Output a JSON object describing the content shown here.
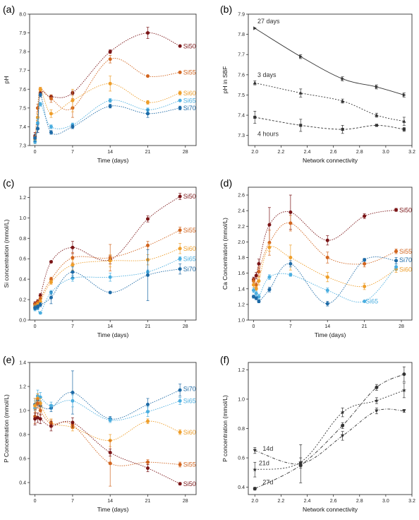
{
  "colors": {
    "Si50": "#7a1416",
    "Si55": "#d2651f",
    "Si60": "#ee9e2a",
    "Si65": "#4aaee0",
    "Si70": "#1d6aa6",
    "bw": "#333333"
  },
  "chart_data": [
    {
      "panel": "(a)",
      "type": "line",
      "xlabel": "Time (days)",
      "ylabel": "pH",
      "xlim": [
        -1,
        30
      ],
      "ylim": [
        7.3,
        8.0
      ],
      "xticks": [
        0,
        7,
        14,
        21,
        28
      ],
      "yticks": [
        7.3,
        7.4,
        7.5,
        7.6,
        7.7,
        7.8,
        7.9,
        8.0
      ],
      "xtick_labels": [
        "0",
        "7",
        "14",
        "21",
        "28"
      ],
      "ytick_labels": [
        "7.3",
        "7.4",
        "7.5",
        "7.6",
        "7.7",
        "7.8",
        "7.9",
        "8.0"
      ],
      "x": [
        0,
        0.5,
        1,
        3,
        7,
        14,
        21,
        27
      ],
      "series": [
        {
          "name": "Si50",
          "color": "Si50",
          "values": [
            7.35,
            7.39,
            7.58,
            7.56,
            7.58,
            7.8,
            7.9,
            7.83
          ],
          "err": [
            0.02,
            0.02,
            0.02,
            0.01,
            0.01,
            0.01,
            0.03,
            0.0
          ]
        },
        {
          "name": "Si55",
          "color": "Si55",
          "values": [
            7.34,
            7.5,
            7.6,
            7.55,
            7.5,
            7.76,
            7.67,
            7.69
          ],
          "err": [
            0.02,
            0.02,
            0.01,
            0.02,
            0.05,
            0.02,
            0.0,
            0.0
          ]
        },
        {
          "name": "Si60",
          "color": "Si60",
          "values": [
            7.33,
            7.45,
            7.6,
            7.47,
            7.54,
            7.63,
            7.53,
            7.58
          ],
          "err": [
            0.02,
            0.02,
            0.01,
            0.02,
            0.06,
            0.04,
            0.01,
            0.01
          ]
        },
        {
          "name": "Si65",
          "color": "Si65",
          "values": [
            7.32,
            7.42,
            7.52,
            7.4,
            7.41,
            7.54,
            7.49,
            7.54
          ],
          "err": [
            0.01,
            0.02,
            0.01,
            0.01,
            0.01,
            0.01,
            0.01,
            0.0
          ]
        },
        {
          "name": "Si70",
          "color": "Si70",
          "values": [
            7.34,
            7.39,
            7.57,
            7.37,
            7.4,
            7.51,
            7.47,
            7.5
          ],
          "err": [
            0.02,
            0.02,
            0.01,
            0.01,
            0.01,
            0.01,
            0.02,
            0.01
          ]
        }
      ],
      "labels": [
        {
          "text": "Si50",
          "color": "Si50",
          "x": 27.6,
          "y": 7.83
        },
        {
          "text": "Si55",
          "color": "Si55",
          "x": 27.6,
          "y": 7.69
        },
        {
          "text": "Si60",
          "color": "Si60",
          "x": 27.6,
          "y": 7.58
        },
        {
          "text": "Si65",
          "color": "Si65",
          "x": 27.6,
          "y": 7.54
        },
        {
          "text": "Si70",
          "color": "Si70",
          "x": 27.6,
          "y": 7.5
        }
      ]
    },
    {
      "panel": "(b)",
      "type": "line",
      "xlabel": "Network connectivity",
      "ylabel": "pH in SBF",
      "xlim": [
        1.95,
        3.2
      ],
      "ylim": [
        7.25,
        7.9
      ],
      "xticks": [
        2.0,
        2.2,
        2.4,
        2.6,
        2.8,
        3.0,
        3.2
      ],
      "yticks": [
        7.3,
        7.4,
        7.5,
        7.6,
        7.7,
        7.8,
        7.9
      ],
      "xtick_labels": [
        "2.0",
        "2.2",
        "2.4",
        "2.6",
        "2.8",
        "3.0",
        "3.2"
      ],
      "ytick_labels": [
        "7.3",
        "7.4",
        "7.5",
        "7.6",
        "7.7",
        "7.8",
        "7.9"
      ],
      "x": [
        2.0,
        2.35,
        2.67,
        2.93,
        3.14
      ],
      "series": [
        {
          "name": "27 days",
          "color": "bw",
          "marker": "tri-right",
          "dash": "",
          "values": [
            7.83,
            7.69,
            7.58,
            7.54,
            7.5
          ],
          "err": [
            0.0,
            0.01,
            0.01,
            0.01,
            0.01
          ]
        },
        {
          "name": "3 days",
          "color": "bw",
          "marker": "tri-up",
          "dash": "2 2",
          "values": [
            7.56,
            7.51,
            7.47,
            7.4,
            7.37
          ],
          "err": [
            0.01,
            0.02,
            0.01,
            0.01,
            0.02
          ]
        },
        {
          "name": "4 hours",
          "color": "bw",
          "marker": "square",
          "dash": "3 2",
          "values": [
            7.39,
            7.35,
            7.33,
            7.35,
            7.33
          ],
          "err": [
            0.03,
            0.03,
            0.02,
            0.0,
            0.01
          ]
        }
      ],
      "labels": [
        {
          "text": "27 days",
          "color": "bw",
          "x": 2.02,
          "y": 7.866
        },
        {
          "text": "3 days",
          "color": "bw",
          "x": 2.02,
          "y": 7.6
        },
        {
          "text": "4 hours",
          "color": "bw",
          "x": 2.02,
          "y": 7.308
        }
      ]
    },
    {
      "panel": "(c)",
      "type": "line",
      "xlabel": "Time (days)",
      "ylabel": "Si concentration (mmol/L)",
      "xlim": [
        -1,
        30
      ],
      "ylim": [
        0.0,
        1.3
      ],
      "xticks": [
        0,
        7,
        14,
        21,
        28
      ],
      "yticks": [
        0.0,
        0.2,
        0.4,
        0.6,
        0.8,
        1.0,
        1.2
      ],
      "xtick_labels": [
        "0",
        "7",
        "14",
        "21",
        "28"
      ],
      "ytick_labels": [
        "0.0",
        "0.2",
        "0.4",
        "0.6",
        "0.8",
        "1.0",
        "1.2"
      ],
      "x": [
        0,
        0.5,
        1,
        3,
        7,
        14,
        21,
        27
      ],
      "series": [
        {
          "name": "Si50",
          "color": "Si50",
          "values": [
            0.16,
            0.18,
            0.24,
            0.57,
            0.71,
            0.59,
            0.99,
            1.21
          ],
          "err": [
            0.02,
            0.02,
            0.02,
            0.01,
            0.06,
            0.04,
            0.03,
            0.03
          ]
        },
        {
          "name": "Si55",
          "color": "Si55",
          "values": [
            0.15,
            0.17,
            0.21,
            0.4,
            0.61,
            0.61,
            0.73,
            0.88
          ],
          "err": [
            0.02,
            0.02,
            0.02,
            0.02,
            0.05,
            0.13,
            0.04,
            0.03
          ]
        },
        {
          "name": "Si60",
          "color": "Si60",
          "values": [
            0.13,
            0.15,
            0.18,
            0.37,
            0.54,
            0.58,
            0.59,
            0.7
          ],
          "err": [
            0.02,
            0.02,
            0.02,
            0.02,
            0.05,
            0.06,
            0.05,
            0.05
          ]
        },
        {
          "name": "Si65",
          "color": "Si65",
          "values": [
            0.11,
            0.12,
            0.07,
            0.27,
            0.41,
            0.42,
            0.47,
            0.6
          ],
          "err": [
            0.02,
            0.02,
            0.01,
            0.02,
            0.03,
            0.04,
            0.02,
            0.02
          ]
        },
        {
          "name": "Si70",
          "color": "Si70",
          "values": [
            0.12,
            0.13,
            0.15,
            0.22,
            0.47,
            0.27,
            0.44,
            0.5
          ],
          "err": [
            0.02,
            0.02,
            0.02,
            0.06,
            0.05,
            0.0,
            0.25,
            0.05
          ]
        }
      ],
      "labels": [
        {
          "text": "Si50",
          "color": "Si50",
          "x": 27.6,
          "y": 1.21
        },
        {
          "text": "Si55",
          "color": "Si55",
          "x": 27.6,
          "y": 0.88
        },
        {
          "text": "Si60",
          "color": "Si60",
          "x": 27.6,
          "y": 0.7
        },
        {
          "text": "Si65",
          "color": "Si65",
          "x": 27.6,
          "y": 0.6
        },
        {
          "text": "Si70",
          "color": "Si70",
          "x": 27.6,
          "y": 0.5
        }
      ]
    },
    {
      "panel": "(d)",
      "type": "line",
      "xlabel": "Time (days)",
      "ylabel": "Ca Concentration (mmol/L)",
      "xlim": [
        -1,
        30
      ],
      "ylim": [
        1.0,
        2.7
      ],
      "xticks": [
        0,
        7,
        14,
        21,
        28
      ],
      "yticks": [
        1.0,
        1.2,
        1.4,
        1.6,
        1.8,
        2.0,
        2.2,
        2.4,
        2.6
      ],
      "xtick_labels": [
        "0",
        "7",
        "14",
        "21",
        "28"
      ],
      "ytick_labels": [
        "1.0",
        "1.2",
        "1.4",
        "1.6",
        "1.8",
        "2.0",
        "2.2",
        "2.4",
        "2.6"
      ],
      "x": [
        0,
        0.5,
        1,
        3,
        7,
        14,
        21,
        27
      ],
      "series": [
        {
          "name": "Si50",
          "color": "Si50",
          "values": [
            1.52,
            1.57,
            1.72,
            2.22,
            2.38,
            2.02,
            2.33,
            2.41
          ],
          "err": [
            0.03,
            0.04,
            0.06,
            0.22,
            0.22,
            0.06,
            0.03,
            0.02
          ]
        },
        {
          "name": "Si55",
          "color": "Si55",
          "values": [
            1.5,
            1.45,
            1.62,
            1.99,
            2.24,
            1.8,
            1.72,
            1.88
          ],
          "err": [
            0.03,
            0.03,
            0.06,
            0.16,
            0.1,
            0.07,
            0.04,
            0.03
          ]
        },
        {
          "name": "Si60",
          "color": "Si60",
          "values": [
            1.45,
            1.4,
            1.5,
            1.93,
            1.8,
            1.55,
            1.43,
            1.65
          ],
          "err": [
            0.04,
            0.03,
            0.05,
            0.05,
            0.16,
            0.06,
            0.04,
            0.04
          ]
        },
        {
          "name": "Si65",
          "color": "Si65",
          "values": [
            1.38,
            1.34,
            1.3,
            1.55,
            1.58,
            1.38,
            1.24,
            1.68
          ],
          "err": [
            0.03,
            0.03,
            0.03,
            0.03,
            0.02,
            0.03,
            0.0,
            0.04
          ]
        },
        {
          "name": "Si70",
          "color": "Si70",
          "values": [
            1.3,
            1.28,
            1.24,
            1.39,
            1.72,
            1.21,
            1.77,
            1.76
          ],
          "err": [
            0.02,
            0.02,
            0.02,
            0.03,
            0.04,
            0.03,
            0.02,
            0.04
          ]
        }
      ],
      "labels": [
        {
          "text": "Si50",
          "color": "Si50",
          "x": 27.6,
          "y": 2.41
        },
        {
          "text": "Si55",
          "color": "Si55",
          "x": 27.6,
          "y": 1.88
        },
        {
          "text": "Si70",
          "color": "Si70",
          "x": 27.6,
          "y": 1.77
        },
        {
          "text": "Si60",
          "color": "Si60",
          "x": 27.6,
          "y": 1.65
        },
        {
          "text": "Si65",
          "color": "Si65",
          "x": 21.2,
          "y": 1.24
        }
      ]
    },
    {
      "panel": "(e)",
      "type": "line",
      "xlabel": "Time (days)",
      "ylabel": "P Concentration (mmol/L)",
      "xlim": [
        -1,
        30
      ],
      "ylim": [
        0.3,
        1.4
      ],
      "xticks": [
        0,
        7,
        14,
        21,
        28
      ],
      "yticks": [
        0.4,
        0.6,
        0.8,
        1.0,
        1.2,
        1.4
      ],
      "xtick_labels": [
        "0",
        "7",
        "14",
        "21",
        "28"
      ],
      "ytick_labels": [
        "0.4",
        "0.6",
        "0.8",
        "1.0",
        "1.2",
        "1.4"
      ],
      "x": [
        0,
        0.5,
        1,
        3,
        7,
        14,
        21,
        27
      ],
      "series": [
        {
          "name": "Si70",
          "color": "Si70",
          "values": [
            1.05,
            1.09,
            1.04,
            1.02,
            1.15,
            0.93,
            1.05,
            1.17
          ],
          "err": [
            0.05,
            0.05,
            0.04,
            0.03,
            0.18,
            0.02,
            0.05,
            0.05
          ]
        },
        {
          "name": "Si65",
          "color": "Si65",
          "values": [
            1.02,
            1.12,
            1.11,
            1.04,
            1.08,
            0.92,
            0.99,
            1.08
          ],
          "err": [
            0.06,
            0.05,
            0.04,
            0.03,
            0.05,
            0.02,
            0.04,
            0.03
          ]
        },
        {
          "name": "Si60",
          "color": "Si60",
          "values": [
            1.04,
            1.1,
            1.06,
            0.9,
            0.86,
            0.75,
            0.91,
            0.82
          ],
          "err": [
            0.06,
            0.04,
            0.04,
            0.03,
            0.03,
            0.05,
            0.02,
            0.02
          ]
        },
        {
          "name": "Si55",
          "color": "Si55",
          "values": [
            0.95,
            1.06,
            1.0,
            0.89,
            0.88,
            0.56,
            0.57,
            0.55
          ],
          "err": [
            0.06,
            0.04,
            0.04,
            0.03,
            0.03,
            0.19,
            0.02,
            0.02
          ]
        },
        {
          "name": "Si50",
          "color": "Si50",
          "values": [
            0.93,
            0.94,
            0.93,
            0.87,
            0.9,
            0.65,
            0.52,
            0.39
          ],
          "err": [
            0.05,
            0.04,
            0.04,
            0.04,
            0.04,
            0.03,
            0.03,
            0.01
          ]
        }
      ],
      "labels": [
        {
          "text": "Si70",
          "color": "Si70",
          "x": 27.6,
          "y": 1.18
        },
        {
          "text": "Si65",
          "color": "Si65",
          "x": 27.6,
          "y": 1.08
        },
        {
          "text": "Si60",
          "color": "Si60",
          "x": 27.6,
          "y": 0.82
        },
        {
          "text": "Si55",
          "color": "Si55",
          "x": 27.6,
          "y": 0.55
        },
        {
          "text": "Si50",
          "color": "Si50",
          "x": 27.6,
          "y": 0.39
        }
      ]
    },
    {
      "panel": "(f)",
      "type": "line",
      "xlabel": "Network connectivity",
      "ylabel": "P concentration (mmol/L)",
      "xlim": [
        1.95,
        3.2
      ],
      "ylim": [
        0.35,
        1.25
      ],
      "xticks": [
        2.0,
        2.2,
        2.4,
        2.6,
        2.8,
        3.0,
        3.2
      ],
      "yticks": [
        0.4,
        0.6,
        0.8,
        1.0,
        1.2
      ],
      "xtick_labels": [
        "2.0",
        "2.2",
        "2.4",
        "2.6",
        "2.8",
        "3.0",
        "3.2"
      ],
      "ytick_labels": [
        "0.4",
        "0.6",
        "0.8",
        "1.0",
        "1.2"
      ],
      "x": [
        2.0,
        2.35,
        2.67,
        2.93,
        3.14
      ],
      "series": [
        {
          "name": "14d",
          "color": "bw",
          "marker": "tri-down",
          "dash": "4 2 1 2",
          "values": [
            0.65,
            0.56,
            0.75,
            0.92,
            0.92
          ],
          "err": [
            0.02,
            0.13,
            0.03,
            0.02,
            0.01
          ]
        },
        {
          "name": "21d",
          "color": "bw",
          "marker": "star",
          "dash": "2 2",
          "values": [
            0.52,
            0.57,
            0.91,
            0.99,
            1.06
          ],
          "err": [
            0.05,
            0.03,
            0.03,
            0.02,
            0.05
          ]
        },
        {
          "name": "27d",
          "color": "bw",
          "marker": "circle",
          "dash": "5 2 1 2",
          "values": [
            0.39,
            0.55,
            0.82,
            1.08,
            1.17
          ],
          "err": [
            0.01,
            0.02,
            0.02,
            0.02,
            0.05
          ]
        }
      ],
      "labels": [
        {
          "text": "14d",
          "color": "bw",
          "x": 2.06,
          "y": 0.665
        },
        {
          "text": "21d",
          "color": "bw",
          "x": 2.03,
          "y": 0.565
        },
        {
          "text": "27d",
          "color": "bw",
          "x": 2.06,
          "y": 0.435
        }
      ]
    }
  ]
}
